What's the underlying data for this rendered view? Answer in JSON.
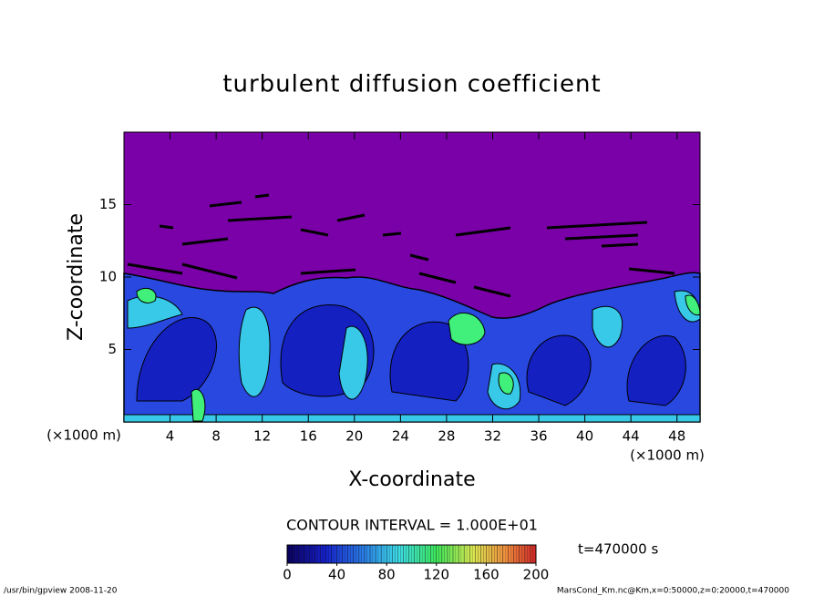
{
  "chart_data": {
    "type": "contour",
    "title": "turbulent diffusion coefficient",
    "x_label": "X-coordinate",
    "y_label": "Z-coordinate",
    "x_unit": "(×1000 m)",
    "xlim": [
      0,
      50
    ],
    "xticks": [
      4,
      8,
      12,
      16,
      20,
      24,
      28,
      32,
      36,
      40,
      44,
      48
    ],
    "ylim": [
      0,
      20
    ],
    "yticks": [
      5,
      10,
      15
    ],
    "contour_interval": "CONTOUR INTERVAL = 1.000E+01",
    "colorbar": {
      "range": [
        0,
        200
      ],
      "ticks": [
        0,
        40,
        80,
        120,
        160,
        200
      ]
    },
    "time_label": "t=470000 s",
    "footer_left": "/usr/bin/gpview  2008-11-20",
    "footer_right": "MarsCond_Km.nc@Km,x=0:50000,z=0:20000,t=470000"
  }
}
